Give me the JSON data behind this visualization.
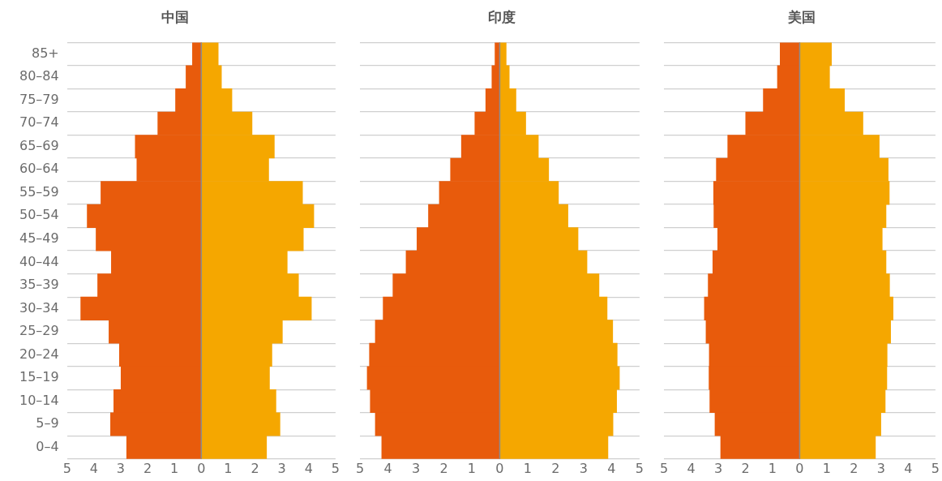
{
  "chart_data": [
    {
      "type": "bar",
      "title": "中国",
      "orientation": "horizontal",
      "stacked": true,
      "grid": "y",
      "legend": false,
      "categories": [
        "85+",
        "80–84",
        "75–79",
        "70–74",
        "65–69",
        "60–64",
        "55–59",
        "50–54",
        "45–49",
        "40–44",
        "35–39",
        "30–34",
        "25–29",
        "20–24",
        "15–19",
        "10–14",
        "5–9",
        "0–4"
      ],
      "series": [
        {
          "color": "#e85b0c",
          "values": [
            -0.33,
            -0.57,
            -0.96,
            -1.62,
            -2.46,
            -2.4,
            -3.74,
            -4.25,
            -3.92,
            -3.35,
            -3.86,
            -4.49,
            -3.44,
            -3.05,
            -2.99,
            -3.26,
            -3.38,
            -2.78
          ]
        },
        {
          "color": "#f5a700",
          "values": [
            0.63,
            0.75,
            1.14,
            1.89,
            2.72,
            2.51,
            3.77,
            4.19,
            3.8,
            3.2,
            3.62,
            4.1,
            3.02,
            2.63,
            2.54,
            2.78,
            2.93,
            2.43
          ]
        }
      ],
      "xlim": [
        -5,
        5
      ],
      "xticks": [
        {
          "value": -5,
          "label": "5"
        },
        {
          "value": -4,
          "label": "4"
        },
        {
          "value": -3,
          "label": "3"
        },
        {
          "value": -2,
          "label": "2"
        },
        {
          "value": -1,
          "label": "1"
        },
        0,
        1,
        2,
        3,
        4,
        5
      ],
      "ref_lines": [
        {
          "axis": "x",
          "value": 0,
          "color": "#8c8c8c"
        }
      ]
    },
    {
      "type": "bar",
      "title": "印度",
      "orientation": "horizontal",
      "stacked": true,
      "grid": "y",
      "legend": false,
      "tick_labels": "x",
      "categories": [
        null,
        null,
        null,
        null,
        null,
        null,
        null,
        null,
        null,
        null,
        null,
        null,
        null,
        null,
        null,
        null,
        null,
        null
      ],
      "series": [
        {
          "color": "#e85b0c",
          "values": [
            -0.17,
            -0.28,
            -0.5,
            -0.89,
            -1.37,
            -1.76,
            -2.16,
            -2.55,
            -2.96,
            -3.35,
            -3.82,
            -4.17,
            -4.45,
            -4.66,
            -4.74,
            -4.63,
            -4.45,
            -4.22
          ]
        },
        {
          "color": "#f5a700",
          "values": [
            0.23,
            0.34,
            0.58,
            0.93,
            1.38,
            1.75,
            2.1,
            2.44,
            2.8,
            3.12,
            3.55,
            3.84,
            4.04,
            4.2,
            4.28,
            4.18,
            4.05,
            3.87
          ]
        }
      ],
      "xlim": [
        -5,
        5
      ],
      "xticks": [
        {
          "value": -5,
          "label": "5"
        },
        {
          "value": -4,
          "label": "4"
        },
        {
          "value": -3,
          "label": "3"
        },
        {
          "value": -2,
          "label": "2"
        },
        {
          "value": -1,
          "label": "1"
        },
        0,
        1,
        2,
        3,
        4,
        5
      ],
      "ref_lines": [
        {
          "axis": "x",
          "value": 0,
          "color": "#8c8c8c"
        }
      ]
    },
    {
      "type": "bar",
      "title": "美国",
      "orientation": "horizontal",
      "stacked": true,
      "grid": "y",
      "legend": false,
      "tick_labels": "x",
      "categories": [
        null,
        null,
        null,
        null,
        null,
        null,
        null,
        null,
        null,
        null,
        null,
        null,
        null,
        null,
        null,
        null,
        null,
        null
      ],
      "series": [
        {
          "color": "#e85b0c",
          "values": [
            -0.72,
            -0.82,
            -1.34,
            -1.99,
            -2.65,
            -3.07,
            -3.17,
            -3.16,
            -3.02,
            -3.2,
            -3.37,
            -3.51,
            -3.45,
            -3.33,
            -3.34,
            -3.31,
            -3.12,
            -2.91
          ]
        },
        {
          "color": "#f5a700",
          "values": [
            1.17,
            1.1,
            1.65,
            2.33,
            2.93,
            3.26,
            3.3,
            3.18,
            3.04,
            3.18,
            3.31,
            3.44,
            3.35,
            3.22,
            3.21,
            3.15,
            2.99,
            2.79
          ]
        }
      ],
      "xlim": [
        -5,
        5
      ],
      "xticks": [
        {
          "value": -5,
          "label": "5"
        },
        {
          "value": -4,
          "label": "4"
        },
        {
          "value": -3,
          "label": "3"
        },
        {
          "value": -2,
          "label": "2"
        },
        {
          "value": -1,
          "label": "1"
        },
        0,
        1,
        2,
        3,
        4,
        5
      ],
      "ref_lines": [
        {
          "axis": "x",
          "value": 0,
          "color": "#8c8c8c"
        }
      ]
    }
  ]
}
